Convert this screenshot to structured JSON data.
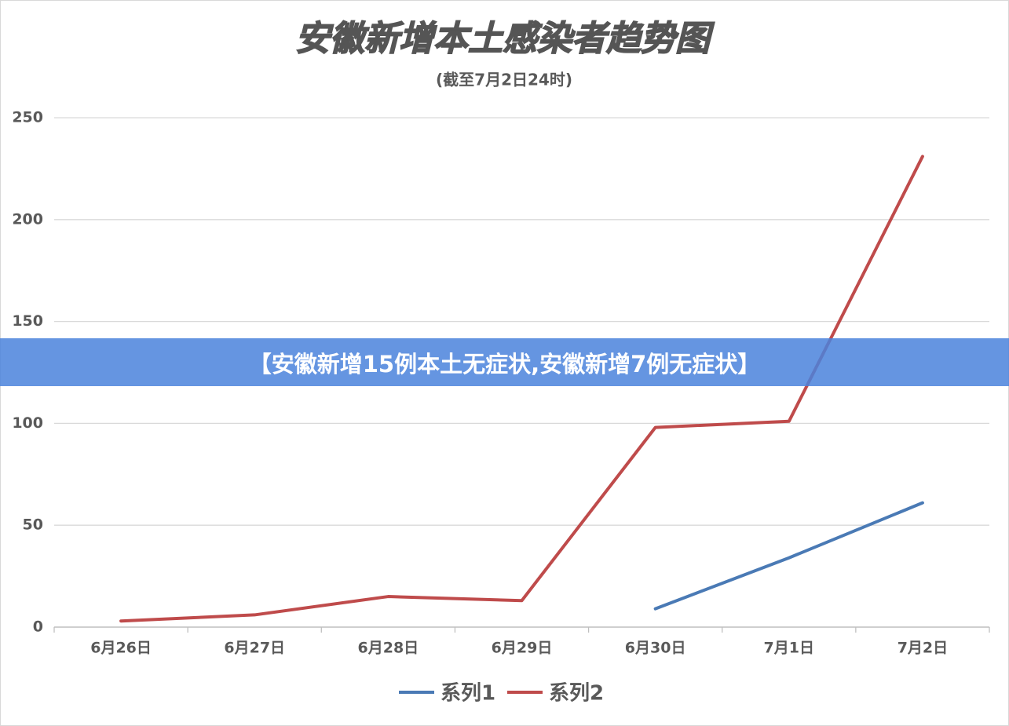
{
  "chart_data": {
    "type": "line",
    "title": "安徽新增本土感染者趋势图",
    "subtitle": "(截至7月2日24时)",
    "categories": [
      "6月26日",
      "6月27日",
      "6月28日",
      "6月29日",
      "6月30日",
      "7月1日",
      "7月2日"
    ],
    "series": [
      {
        "name": "系列1",
        "color": "#4a7ab5",
        "values": [
          null,
          null,
          null,
          null,
          9,
          34,
          61
        ]
      },
      {
        "name": "系列2",
        "color": "#bf4b4b",
        "values": [
          3,
          6,
          15,
          13,
          98,
          101,
          231
        ]
      }
    ],
    "ylim": [
      0,
      250
    ],
    "yticks": [
      0,
      50,
      100,
      150,
      200,
      250
    ],
    "grid": true,
    "legend": "bottom"
  },
  "banner": "【安徽新增15例本土无症状,安徽新增7例无症状】"
}
